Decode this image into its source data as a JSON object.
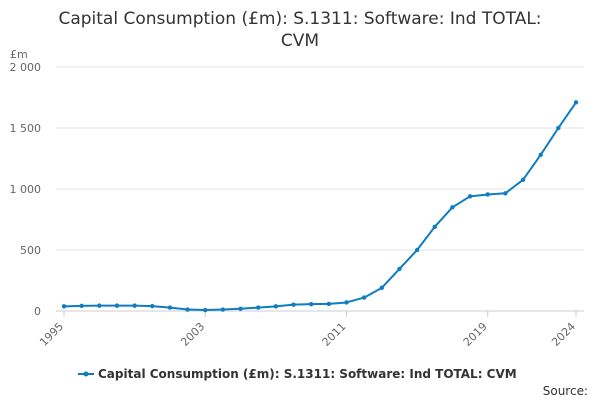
{
  "chart_data": {
    "type": "line",
    "title_lines": [
      "Capital Consumption (£m): S.1311: Software: Ind TOTAL:",
      "CVM"
    ],
    "ylabel": "£m",
    "xlabel": "",
    "ylim": [
      0,
      2000
    ],
    "yticks": [
      0,
      500,
      1000,
      1500,
      2000
    ],
    "ytick_labels": [
      "0",
      "500",
      "1 000",
      "1 500",
      "2 000"
    ],
    "xlim": [
      1995,
      2024
    ],
    "xticks": [
      1995,
      2003,
      2011,
      2019,
      2024
    ],
    "xtick_labels": [
      "1995",
      "2003",
      "2011",
      "2019",
      "2024"
    ],
    "grid": true,
    "legend_position": "bottom",
    "series": [
      {
        "name": "Capital Consumption (£m): S.1311: Software: Ind TOTAL: CVM",
        "color": "#0f7dc0",
        "x": [
          1995,
          1996,
          1997,
          1998,
          1999,
          2000,
          2001,
          2002,
          2003,
          2004,
          2005,
          2006,
          2007,
          2008,
          2009,
          2010,
          2011,
          2012,
          2013,
          2014,
          2015,
          2016,
          2017,
          2018,
          2019,
          2020,
          2021,
          2022,
          2023,
          2024
        ],
        "values": [
          38,
          42,
          44,
          44,
          44,
          40,
          28,
          12,
          8,
          12,
          18,
          28,
          38,
          52,
          56,
          58,
          70,
          110,
          190,
          345,
          500,
          690,
          850,
          940,
          955,
          965,
          1075,
          1280,
          1500,
          1710
        ]
      }
    ]
  },
  "legend": {
    "label": "Capital Consumption (£m): S.1311: Software: Ind TOTAL: CVM"
  },
  "source_label": "Source:"
}
